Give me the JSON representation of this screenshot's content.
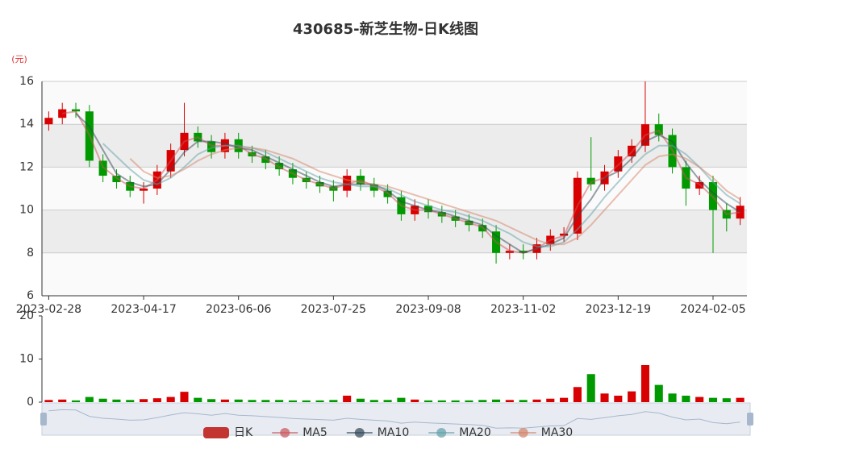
{
  "chart_data": {
    "type": "candlestick",
    "title": "430685-新芝生物-日K线图",
    "y_axis_label": "(元)",
    "categories": [
      "2023-02-28",
      null,
      null,
      null,
      null,
      null,
      null,
      "2023-04-17",
      null,
      null,
      null,
      null,
      null,
      null,
      "2023-06-06",
      null,
      null,
      null,
      null,
      null,
      null,
      "2023-07-25",
      null,
      null,
      null,
      null,
      null,
      null,
      "2023-09-08",
      null,
      null,
      null,
      null,
      null,
      null,
      "2023-11-02",
      null,
      null,
      null,
      null,
      null,
      null,
      "2023-12-19",
      null,
      null,
      null,
      null,
      null,
      null,
      "2024-02-05",
      null,
      null
    ],
    "ylim": [
      6,
      16
    ],
    "yticks": [
      6,
      8,
      10,
      12,
      14,
      16
    ],
    "kline": {
      "name": "日K",
      "color": "#c23531",
      "up_color": "#d80000",
      "down_color": "#009a00",
      "values": [
        [
          14.0,
          14.3,
          13.7,
          14.6
        ],
        [
          14.3,
          14.7,
          14.0,
          15.0
        ],
        [
          14.7,
          14.6,
          14.3,
          15.0
        ],
        [
          14.6,
          12.3,
          12.0,
          14.9
        ],
        [
          12.3,
          11.6,
          11.3,
          12.6
        ],
        [
          11.6,
          11.3,
          11.0,
          11.9
        ],
        [
          11.3,
          10.9,
          10.6,
          11.6
        ],
        [
          10.9,
          11.0,
          10.3,
          11.3
        ],
        [
          11.0,
          11.8,
          10.7,
          12.1
        ],
        [
          11.8,
          12.8,
          11.5,
          13.1
        ],
        [
          12.8,
          13.6,
          12.5,
          15.0
        ],
        [
          13.6,
          13.2,
          12.9,
          13.9
        ],
        [
          13.2,
          12.7,
          12.4,
          13.5
        ],
        [
          12.7,
          13.3,
          12.4,
          13.6
        ],
        [
          13.3,
          12.7,
          12.4,
          13.6
        ],
        [
          12.7,
          12.5,
          12.2,
          13.0
        ],
        [
          12.5,
          12.2,
          11.9,
          12.8
        ],
        [
          12.2,
          11.9,
          11.6,
          12.5
        ],
        [
          11.9,
          11.5,
          11.2,
          12.2
        ],
        [
          11.5,
          11.3,
          11.0,
          11.8
        ],
        [
          11.3,
          11.1,
          10.8,
          11.6
        ],
        [
          11.1,
          10.9,
          10.4,
          11.4
        ],
        [
          10.9,
          11.6,
          10.6,
          11.9
        ],
        [
          11.6,
          11.2,
          10.9,
          11.9
        ],
        [
          11.2,
          10.9,
          10.6,
          11.5
        ],
        [
          10.9,
          10.6,
          10.3,
          11.2
        ],
        [
          10.6,
          9.8,
          9.5,
          10.9
        ],
        [
          9.8,
          10.2,
          9.5,
          10.5
        ],
        [
          10.2,
          9.9,
          9.6,
          10.5
        ],
        [
          9.9,
          9.7,
          9.4,
          10.2
        ],
        [
          9.7,
          9.5,
          9.2,
          10.0
        ],
        [
          9.5,
          9.3,
          9.0,
          9.8
        ],
        [
          9.3,
          9.0,
          8.7,
          9.6
        ],
        [
          9.0,
          8.0,
          7.5,
          9.3
        ],
        [
          8.0,
          8.1,
          7.7,
          8.4
        ],
        [
          8.1,
          8.0,
          7.7,
          8.4
        ],
        [
          8.0,
          8.4,
          7.7,
          8.7
        ],
        [
          8.4,
          8.8,
          8.1,
          9.1
        ],
        [
          8.8,
          8.9,
          8.5,
          9.2
        ],
        [
          8.9,
          11.5,
          8.6,
          11.8
        ],
        [
          11.5,
          11.2,
          10.9,
          13.4
        ],
        [
          11.2,
          11.8,
          10.9,
          12.1
        ],
        [
          11.8,
          12.5,
          11.5,
          12.8
        ],
        [
          12.5,
          13.0,
          12.2,
          13.3
        ],
        [
          13.0,
          14.0,
          12.7,
          16.0
        ],
        [
          14.0,
          13.5,
          13.2,
          14.5
        ],
        [
          13.5,
          12.0,
          11.7,
          13.8
        ],
        [
          12.0,
          11.0,
          10.2,
          12.3
        ],
        [
          11.0,
          11.3,
          10.7,
          11.6
        ],
        [
          11.3,
          10.0,
          8.0,
          11.6
        ],
        [
          10.0,
          9.6,
          9.0,
          10.3
        ],
        [
          9.6,
          10.2,
          9.3,
          10.6
        ]
      ]
    },
    "series": [
      {
        "name": "MA5",
        "color": "#c9545a",
        "values": [
          null,
          14.5,
          14.6,
          13.5,
          12.0,
          11.5,
          11.1,
          11.0,
          11.4,
          12.3,
          13.2,
          13.4,
          13.0,
          13.0,
          13.0,
          12.6,
          12.4,
          12.0,
          11.7,
          11.4,
          11.2,
          11.0,
          11.2,
          11.4,
          11.1,
          10.8,
          10.2,
          10.0,
          10.0,
          9.8,
          9.6,
          9.4,
          9.2,
          8.5,
          8.1,
          8.0,
          8.2,
          8.6,
          8.8,
          10.2,
          11.3,
          11.5,
          12.1,
          12.7,
          13.5,
          13.7,
          12.8,
          11.5,
          11.2,
          10.6,
          9.8,
          9.9
        ]
      },
      {
        "name": "MA10",
        "color": "#2f4554",
        "values": [
          null,
          null,
          14.5,
          13.9,
          12.8,
          11.7,
          11.3,
          11.1,
          11.2,
          11.9,
          12.7,
          13.2,
          13.2,
          13.1,
          12.9,
          12.8,
          12.5,
          12.2,
          11.9,
          11.6,
          11.3,
          11.1,
          11.2,
          11.2,
          11.2,
          10.9,
          10.4,
          10.2,
          10.0,
          9.9,
          9.7,
          9.5,
          9.3,
          8.8,
          8.4,
          8.0,
          8.2,
          8.4,
          8.7,
          9.7,
          10.5,
          11.5,
          11.8,
          12.4,
          13.2,
          13.5,
          13.2,
          12.2,
          11.4,
          10.8,
          10.3,
          9.9
        ]
      },
      {
        "name": "MA20",
        "color": "#61a0a8",
        "values": [
          null,
          null,
          null,
          null,
          13.1,
          12.5,
          11.9,
          11.4,
          11.2,
          11.5,
          12.0,
          12.6,
          12.9,
          13.0,
          13.0,
          12.9,
          12.7,
          12.4,
          12.1,
          11.8,
          11.5,
          11.3,
          11.2,
          11.1,
          11.1,
          11.0,
          10.7,
          10.4,
          10.2,
          10.0,
          9.9,
          9.7,
          9.5,
          9.2,
          8.9,
          8.5,
          8.3,
          8.3,
          8.5,
          9.1,
          9.8,
          10.6,
          11.3,
          12.0,
          12.6,
          13.0,
          13.0,
          12.6,
          12.0,
          11.3,
          10.7,
          10.3
        ]
      },
      {
        "name": "MA30",
        "color": "#d48265",
        "values": [
          null,
          null,
          null,
          null,
          null,
          null,
          12.4,
          11.8,
          11.5,
          11.6,
          11.9,
          12.3,
          12.6,
          12.8,
          12.9,
          12.9,
          12.8,
          12.6,
          12.4,
          12.1,
          11.8,
          11.6,
          11.4,
          11.3,
          11.2,
          11.1,
          10.9,
          10.7,
          10.5,
          10.3,
          10.1,
          9.9,
          9.7,
          9.5,
          9.2,
          8.9,
          8.6,
          8.4,
          8.4,
          8.7,
          9.3,
          10.0,
          10.7,
          11.4,
          12.1,
          12.5,
          12.6,
          12.4,
          12.0,
          11.5,
          10.9,
          10.5
        ]
      }
    ],
    "volume": {
      "values": [
        0.5,
        0.6,
        0.4,
        1.2,
        0.8,
        0.6,
        0.5,
        0.7,
        0.9,
        1.2,
        2.4,
        1.0,
        0.7,
        0.6,
        0.6,
        0.5,
        0.5,
        0.5,
        0.4,
        0.4,
        0.4,
        0.5,
        1.5,
        0.8,
        0.5,
        0.5,
        1.0,
        0.6,
        0.4,
        0.4,
        0.4,
        0.4,
        0.5,
        0.6,
        0.5,
        0.5,
        0.6,
        0.8,
        1.0,
        3.5,
        6.5,
        2.0,
        1.5,
        2.5,
        8.6,
        4.0,
        2.0,
        1.5,
        1.2,
        1.0,
        0.9,
        1.0
      ],
      "ylim": [
        0,
        20
      ],
      "yticks": [
        0,
        10,
        20
      ]
    },
    "grid": true,
    "legend_position": "bottom"
  }
}
